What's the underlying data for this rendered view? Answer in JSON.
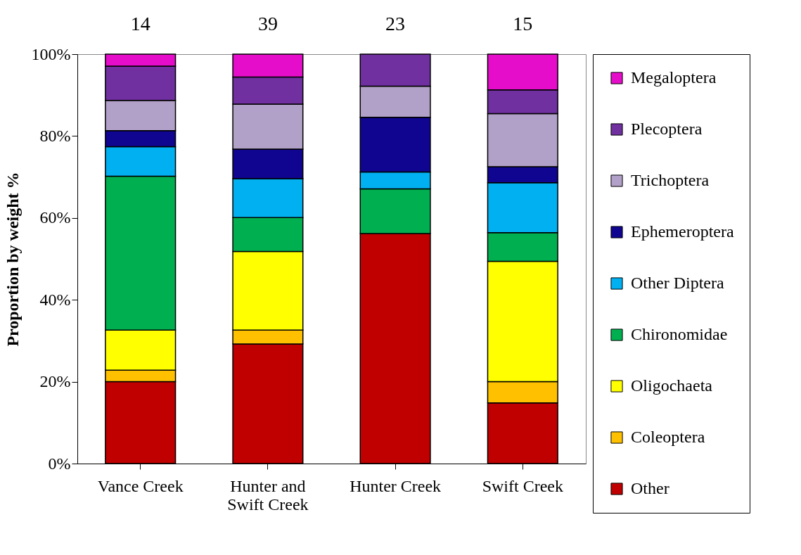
{
  "chart_data": {
    "type": "bar",
    "stacked": true,
    "ylabel": "Proportion by weight %",
    "categories": [
      "Vance Creek",
      "Hunter and Swift Creek",
      "Hunter Creek",
      "Swift Creek"
    ],
    "series": [
      {
        "name": "Other",
        "color": "#c00000",
        "values": [
          20.0,
          29.2,
          56.2,
          14.8
        ]
      },
      {
        "name": "Coleoptera",
        "color": "#ffc000",
        "values": [
          2.8,
          3.4,
          0,
          5.2
        ]
      },
      {
        "name": "Oligochaeta",
        "color": "#ffff00",
        "values": [
          9.8,
          19.2,
          0,
          29.4
        ]
      },
      {
        "name": "Chironomidae",
        "color": "#00b050",
        "values": [
          37.6,
          8.3,
          10.9,
          7.0
        ]
      },
      {
        "name": "Other Diptera",
        "color": "#00b0f0",
        "values": [
          7.2,
          9.5,
          4.1,
          12.2
        ]
      },
      {
        "name": "Ephemeroptera",
        "color": "#0f0590",
        "values": [
          3.9,
          7.2,
          13.4,
          3.9
        ]
      },
      {
        "name": "Trichoptera",
        "color": "#b1a0c7",
        "values": [
          7.4,
          11.0,
          7.6,
          13.0
        ]
      },
      {
        "name": "Plecoptera",
        "color": "#7030a0",
        "values": [
          8.4,
          6.6,
          7.8,
          5.8
        ]
      },
      {
        "name": "Megaloptera",
        "color": "#e60dca",
        "values": [
          2.9,
          5.6,
          0,
          8.7
        ]
      }
    ],
    "annotations": [
      "14",
      "39",
      "23",
      "15"
    ],
    "ylim": [
      0,
      100
    ],
    "yticks": [
      {
        "value": 0,
        "label": "0%"
      },
      {
        "value": 20,
        "label": "20%"
      },
      {
        "value": 40,
        "label": "40%"
      },
      {
        "value": 60,
        "label": "60%"
      },
      {
        "value": 80,
        "label": "80%"
      },
      {
        "value": 100,
        "label": "100%"
      }
    ],
    "legend": "right",
    "grid": false
  }
}
